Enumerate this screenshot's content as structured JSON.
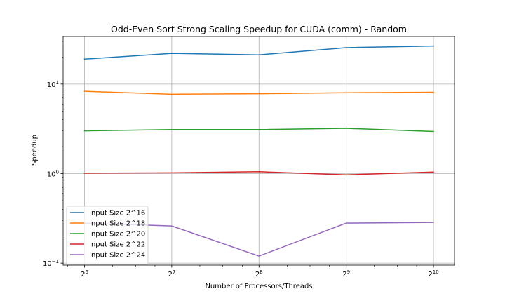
{
  "chart_data": {
    "type": "line",
    "title": "Odd-Even Sort Strong Scaling Speedup for CUDA (comm) - Random",
    "xlabel": "Number of Processors/Threads",
    "ylabel": "Speedup",
    "xscale": "log2",
    "yscale": "log10",
    "x": [
      64,
      128,
      256,
      512,
      1024
    ],
    "x_tick_labels": [
      {
        "base": "2",
        "exp": "6"
      },
      {
        "base": "2",
        "exp": "7"
      },
      {
        "base": "2",
        "exp": "8"
      },
      {
        "base": "2",
        "exp": "9"
      },
      {
        "base": "2",
        "exp": "10"
      }
    ],
    "y_ticks": [
      0.1,
      1,
      10
    ],
    "y_tick_labels": [
      {
        "base": "10",
        "exp": "−1"
      },
      {
        "base": "10",
        "exp": "0"
      },
      {
        "base": "10",
        "exp": "1"
      }
    ],
    "xlim": [
      54,
      1210
    ],
    "ylim": [
      0.095,
      34
    ],
    "grid": true,
    "legend_position": "lower-left",
    "series": [
      {
        "name": "Input Size 2^16",
        "color": "#1f77b4",
        "values": [
          19.0,
          22.0,
          21.2,
          25.5,
          26.6
        ]
      },
      {
        "name": "Input Size 2^18",
        "color": "#ff7f0e",
        "values": [
          8.3,
          7.7,
          7.8,
          8.0,
          8.1
        ]
      },
      {
        "name": "Input Size 2^20",
        "color": "#2ca02c",
        "values": [
          3.0,
          3.1,
          3.1,
          3.2,
          2.95
        ]
      },
      {
        "name": "Input Size 2^22",
        "color": "#d62728",
        "values": [
          1.01,
          1.02,
          1.05,
          0.97,
          1.04
        ]
      },
      {
        "name": "Input Size 2^24",
        "color": "#9467bd",
        "values": [
          0.28,
          0.26,
          0.12,
          0.28,
          0.285
        ]
      }
    ]
  }
}
